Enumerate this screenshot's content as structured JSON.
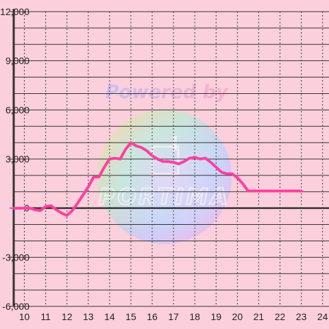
{
  "chart_data": {
    "type": "line",
    "title": "",
    "xlabel": "",
    "ylabel": "",
    "xlim": [
      9.5,
      24.3
    ],
    "ylim": [
      -6000,
      12000
    ],
    "x_ticks": [
      "10",
      "11",
      "12",
      "13",
      "14",
      "15",
      "16",
      "17",
      "18",
      "19",
      "20",
      "21",
      "22",
      "23",
      "24"
    ],
    "y_ticks": [
      "12,000",
      "9,000",
      "6,000",
      "3,000",
      "0",
      "-3,000",
      "-6,000"
    ],
    "y_tick_values": [
      12000,
      9000,
      6000,
      3000,
      0,
      -3000,
      -6000
    ],
    "grid": true,
    "series": [
      {
        "x": [
          9.5,
          10.0,
          10.25,
          10.5,
          10.75,
          11.0,
          11.25,
          11.5,
          11.75,
          12.0,
          12.25,
          12.5,
          12.75,
          13.0,
          13.25,
          13.5,
          13.75,
          14.0,
          14.25,
          14.5,
          14.75,
          15.0,
          15.25,
          15.5,
          15.75,
          16.0,
          16.25,
          16.5,
          16.75,
          17.0,
          17.25,
          17.5,
          17.75,
          18.0,
          18.25,
          18.5,
          18.75,
          19.0,
          19.25,
          19.5,
          19.75,
          20.0,
          20.25,
          20.5,
          21.0,
          21.5,
          22.0,
          22.5,
          23.0
        ],
        "values": [
          0,
          0,
          0,
          -100,
          -150,
          100,
          150,
          -100,
          -300,
          -450,
          -150,
          300,
          800,
          1300,
          1900,
          1900,
          2500,
          3000,
          3050,
          3000,
          3600,
          4000,
          3800,
          3700,
          3500,
          3200,
          3000,
          2850,
          2850,
          2800,
          2700,
          2850,
          3050,
          3100,
          3000,
          3050,
          2800,
          2500,
          2200,
          2100,
          2100,
          1850,
          1500,
          1050,
          1050,
          1050,
          1050,
          1050,
          1050
        ],
        "color": "#ff3fa0"
      }
    ],
    "watermark": {
      "line1": "Powered by",
      "line2": "PORTIMA"
    }
  }
}
